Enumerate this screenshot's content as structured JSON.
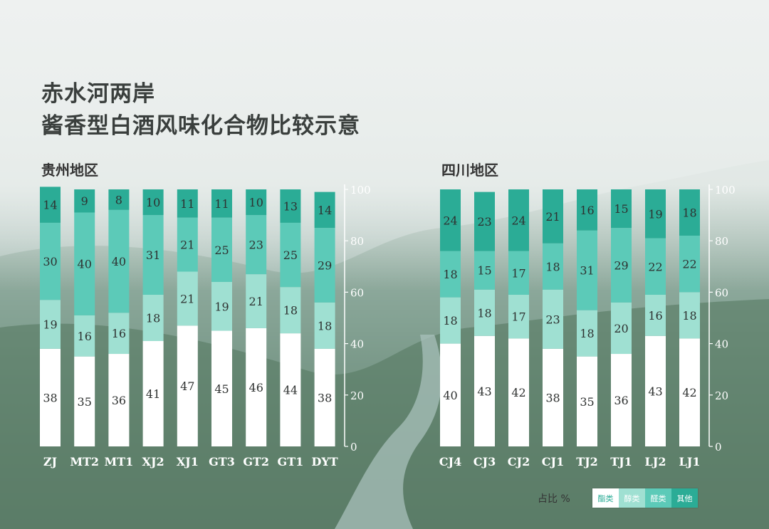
{
  "title": {
    "line1": "赤水河两岸",
    "line2": "酱香型白酒风味化合物比较示意"
  },
  "unit_label": "占比 %",
  "colors": {
    "ester": "#ffffff",
    "alcohol": "#9fe0d2",
    "aldehyde": "#5ccab8",
    "other": "#2bac96",
    "ester_text": "#2bac96"
  },
  "legend": [
    "酯类",
    "醇类",
    "醛类",
    "其他"
  ],
  "chart_data": [
    {
      "type": "bar",
      "stacked": true,
      "region": "贵州地区",
      "categories": [
        "ZJ",
        "MT2",
        "MT1",
        "XJ2",
        "XJ1",
        "GT3",
        "GT2",
        "GT1",
        "DYT"
      ],
      "series": [
        {
          "name": "酯类",
          "values": [
            38,
            35,
            36,
            41,
            47,
            45,
            46,
            44,
            38
          ]
        },
        {
          "name": "醇类",
          "values": [
            19,
            16,
            16,
            18,
            21,
            19,
            21,
            18,
            18
          ]
        },
        {
          "name": "醛类",
          "values": [
            30,
            40,
            40,
            31,
            21,
            25,
            23,
            25,
            29
          ]
        },
        {
          "name": "其他",
          "values": [
            14,
            9,
            8,
            10,
            11,
            11,
            10,
            13,
            14
          ]
        }
      ],
      "ylim": [
        0,
        100
      ],
      "yticks": [
        "0",
        "20",
        "40",
        "60",
        "80",
        "100"
      ],
      "ylabel": "占比 %"
    },
    {
      "type": "bar",
      "stacked": true,
      "region": "四川地区",
      "categories": [
        "CJ4",
        "CJ3",
        "CJ2",
        "CJ1",
        "TJ2",
        "TJ1",
        "LJ2",
        "LJ1"
      ],
      "series": [
        {
          "name": "酯类",
          "values": [
            40,
            43,
            42,
            38,
            35,
            36,
            43,
            42
          ]
        },
        {
          "name": "醇类",
          "values": [
            18,
            18,
            17,
            23,
            18,
            20,
            16,
            18
          ]
        },
        {
          "name": "醛类",
          "values": [
            18,
            15,
            17,
            18,
            31,
            29,
            22,
            22
          ]
        },
        {
          "name": "其他",
          "values": [
            24,
            23,
            24,
            21,
            16,
            15,
            19,
            18
          ]
        }
      ],
      "ylim": [
        0,
        100
      ],
      "yticks": [
        "0",
        "20",
        "40",
        "60",
        "80",
        "100"
      ],
      "ylabel": "占比 %"
    }
  ]
}
